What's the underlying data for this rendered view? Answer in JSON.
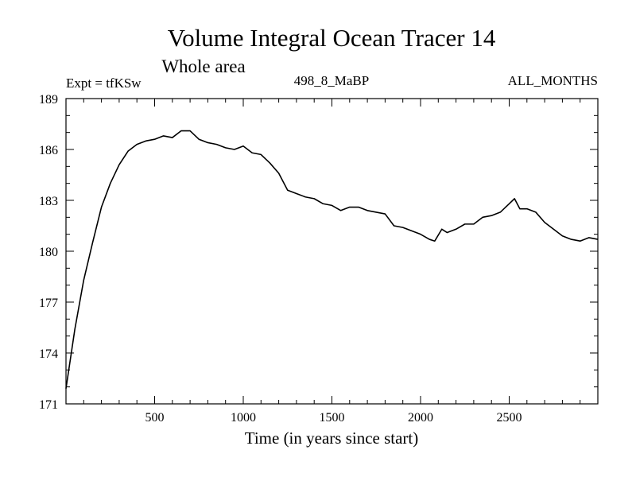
{
  "chart_data": {
    "type": "line",
    "title": "Volume Integral Ocean Tracer 14",
    "subtitle": "Whole area",
    "left_label": "Expt = tfKSw",
    "center_label": "498_8_MaBP",
    "right_label": "ALL_MONTHS",
    "xlabel": "Time (in years since start)",
    "ylabel": "",
    "xlim": [
      0,
      3000
    ],
    "ylim": [
      171,
      189
    ],
    "x_ticks": [
      500,
      1000,
      1500,
      2000,
      2500
    ],
    "y_ticks": [
      171,
      174,
      177,
      180,
      183,
      186,
      189
    ],
    "x_tick_labels": [
      "500",
      "1000",
      "1500",
      "2000",
      "2500"
    ],
    "y_tick_labels": [
      "171",
      "174",
      "177",
      "180",
      "183",
      "186",
      "189"
    ],
    "grid": false,
    "series": [
      {
        "name": "Volume Integral Ocean Tracer 14",
        "x": [
          0,
          50,
          100,
          150,
          200,
          250,
          300,
          350,
          400,
          450,
          500,
          550,
          600,
          650,
          700,
          750,
          800,
          850,
          900,
          950,
          1000,
          1050,
          1100,
          1150,
          1200,
          1250,
          1300,
          1350,
          1400,
          1450,
          1500,
          1550,
          1600,
          1650,
          1700,
          1750,
          1800,
          1850,
          1900,
          1950,
          2000,
          2050,
          2080,
          2120,
          2150,
          2200,
          2250,
          2300,
          2350,
          2400,
          2450,
          2500,
          2530,
          2560,
          2600,
          2650,
          2700,
          2750,
          2800,
          2850,
          2900,
          2950,
          3000
        ],
        "values": [
          171.9,
          175.4,
          178.3,
          180.5,
          182.6,
          184.0,
          185.1,
          185.9,
          186.3,
          186.5,
          186.6,
          186.8,
          186.7,
          187.1,
          187.1,
          186.6,
          186.4,
          186.3,
          186.1,
          186.0,
          186.2,
          185.8,
          185.7,
          185.2,
          184.6,
          183.6,
          183.4,
          183.2,
          183.1,
          182.8,
          182.7,
          182.4,
          182.6,
          182.6,
          182.4,
          182.3,
          182.2,
          181.5,
          181.4,
          181.2,
          181.0,
          180.7,
          180.6,
          181.3,
          181.1,
          181.3,
          181.6,
          181.6,
          182.0,
          182.1,
          182.3,
          182.8,
          183.1,
          182.5,
          182.5,
          182.3,
          181.7,
          181.3,
          180.9,
          180.7,
          180.6,
          180.8,
          180.7
        ]
      }
    ]
  }
}
